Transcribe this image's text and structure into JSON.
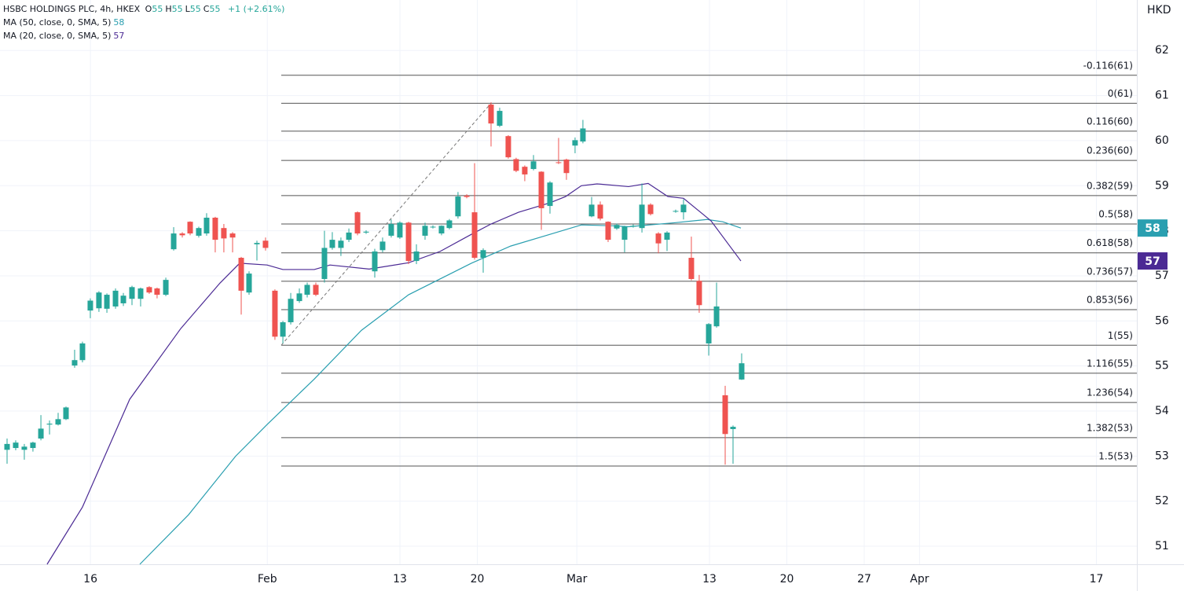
{
  "chart_data": {
    "type": "candlestick",
    "legend": {
      "symbol": "HSBC HOLDINGS PLC, 4h, HKEX",
      "fields": [
        {
          "key": "O",
          "value": "55"
        },
        {
          "key": "H",
          "value": "55"
        },
        {
          "key": "L",
          "value": "55"
        },
        {
          "key": "C",
          "value": "55"
        }
      ],
      "change": "+1 (+2.61%)"
    },
    "currency": "HKD",
    "up_color": "#26a69a",
    "down_color": "#ef5350",
    "grid": true,
    "xlim": [
      7.82,
      110.66
    ],
    "xticks": [
      {
        "value": 16,
        "label": "16"
      },
      {
        "value": 32,
        "label": "Feb"
      },
      {
        "value": 44,
        "label": "13"
      },
      {
        "value": 51,
        "label": "20"
      },
      {
        "value": 60,
        "label": "Mar"
      },
      {
        "value": 72,
        "label": "13"
      },
      {
        "value": 79,
        "label": "20"
      },
      {
        "value": 86,
        "label": "27"
      },
      {
        "value": 91,
        "label": "Apr"
      },
      {
        "value": 107,
        "label": "17"
      }
    ],
    "ylim": [
      50.6,
      63.12
    ],
    "yticks": [
      51,
      52,
      53,
      54,
      55,
      56,
      57,
      58,
      59,
      60,
      61,
      62
    ],
    "candles": {
      "x": [
        8.46,
        9.24,
        10.02,
        10.8,
        11.52,
        12.3,
        13.08,
        13.79,
        14.57,
        15.28,
        15.99,
        16.77,
        17.49,
        18.27,
        18.98,
        19.76,
        20.54,
        21.32,
        22.03,
        22.82,
        23.53,
        24.31,
        25.02,
        25.8,
        26.51,
        27.29,
        28.07,
        28.86,
        29.64,
        30.35,
        31.06,
        31.84,
        32.69,
        33.41,
        34.12,
        34.9,
        35.61,
        36.39,
        37.17,
        37.88,
        38.66,
        39.38,
        40.16,
        40.94,
        41.72,
        42.43,
        43.21,
        43.99,
        44.78,
        45.49,
        46.27,
        46.98,
        47.76,
        48.47,
        49.25,
        50.04,
        50.75,
        51.53,
        52.24,
        53.02,
        53.8,
        54.51,
        55.29,
        56.08,
        56.79,
        57.57,
        58.35,
        59.06,
        59.84,
        60.55,
        61.34,
        62.12,
        62.83,
        63.61,
        64.32,
        65.1,
        65.89,
        66.67,
        67.38,
        68.16,
        68.94,
        69.65,
        70.36,
        71.07,
        71.93,
        72.64,
        73.42,
        74.13,
        74.91
      ],
      "open": [
        53.14,
        53.18,
        53.14,
        53.18,
        53.39,
        53.7,
        53.7,
        53.82,
        55.01,
        55.13,
        56.23,
        56.28,
        56.27,
        56.32,
        56.39,
        56.49,
        56.49,
        56.75,
        56.72,
        56.58,
        57.59,
        57.94,
        58.2,
        57.89,
        57.94,
        58.29,
        58.06,
        57.94,
        57.4,
        56.63,
        57.7,
        57.78,
        56.67,
        55.65,
        55.97,
        56.44,
        56.58,
        56.8,
        56.93,
        57.62,
        57.62,
        57.8,
        58.41,
        57.96,
        57.1,
        57.57,
        57.89,
        57.85,
        58.18,
        57.33,
        57.89,
        58.08,
        57.94,
        58.06,
        58.32,
        58.78,
        58.41,
        57.4,
        60.8,
        60.33,
        60.1,
        59.59,
        59.42,
        59.37,
        59.31,
        58.55,
        59.52,
        59.58,
        59.89,
        59.98,
        58.32,
        58.58,
        58.2,
        58.05,
        57.8,
        58.1,
        58.06,
        58.58,
        57.94,
        57.8,
        58.43,
        58.41,
        57.4,
        56.89,
        55.5,
        55.88,
        54.35,
        53.6,
        54.7
      ],
      "high": [
        53.39,
        53.35,
        53.27,
        53.32,
        53.91,
        53.79,
        53.96,
        54.1,
        55.36,
        55.54,
        56.5,
        56.66,
        56.61,
        56.72,
        56.62,
        56.78,
        56.74,
        56.77,
        56.74,
        56.96,
        58.08,
        57.97,
        58.21,
        58.09,
        58.39,
        58.31,
        58.15,
        57.97,
        57.42,
        57.1,
        57.78,
        57.85,
        56.7,
        56.0,
        56.62,
        56.72,
        56.85,
        56.85,
        58.0,
        57.97,
        57.85,
        58.05,
        58.43,
        58.01,
        57.6,
        57.85,
        58.25,
        58.21,
        58.2,
        57.7,
        58.18,
        58.12,
        58.12,
        58.26,
        58.86,
        58.81,
        59.5,
        57.61,
        60.85,
        60.73,
        60.12,
        59.62,
        59.45,
        59.68,
        59.32,
        59.1,
        60.06,
        59.6,
        60.07,
        60.46,
        58.75,
        58.65,
        58.21,
        58.16,
        58.11,
        58.14,
        59.05,
        58.61,
        57.97,
        57.99,
        58.47,
        58.7,
        57.87,
        57.02,
        55.95,
        56.85,
        54.56,
        53.68,
        55.28
      ],
      "low": [
        52.83,
        53.13,
        52.92,
        53.1,
        53.35,
        53.48,
        53.68,
        53.8,
        54.96,
        55.08,
        56.06,
        56.2,
        56.18,
        56.27,
        56.33,
        56.35,
        56.32,
        56.6,
        56.5,
        56.55,
        57.56,
        57.85,
        57.9,
        57.85,
        57.89,
        57.52,
        57.52,
        57.52,
        56.14,
        56.58,
        57.34,
        57.56,
        55.58,
        55.5,
        55.92,
        56.4,
        56.52,
        56.55,
        56.85,
        57.58,
        57.44,
        57.75,
        57.9,
        57.93,
        56.96,
        57.52,
        57.85,
        57.82,
        57.26,
        57.26,
        57.8,
        58.05,
        57.9,
        58.03,
        58.27,
        58.72,
        57.36,
        57.07,
        59.87,
        60.3,
        59.6,
        59.3,
        59.1,
        59.34,
        58.02,
        58.38,
        59.48,
        59.13,
        59.72,
        59.94,
        58.3,
        58.23,
        57.75,
        58.02,
        57.52,
        58.07,
        57.96,
        58.34,
        57.5,
        57.55,
        58.4,
        58.25,
        56.9,
        56.18,
        55.23,
        55.85,
        52.81,
        52.83,
        54.69
      ],
      "close": [
        53.27,
        53.3,
        53.21,
        53.3,
        53.61,
        53.72,
        53.82,
        54.08,
        55.13,
        55.5,
        56.45,
        56.63,
        56.58,
        56.67,
        56.56,
        56.75,
        56.72,
        56.63,
        56.58,
        56.91,
        57.94,
        57.9,
        57.94,
        58.06,
        58.29,
        57.8,
        57.83,
        57.85,
        56.67,
        57.05,
        57.73,
        57.62,
        55.65,
        55.97,
        56.49,
        56.61,
        56.8,
        56.58,
        57.62,
        57.8,
        57.78,
        57.96,
        57.94,
        57.98,
        57.54,
        57.76,
        58.15,
        58.18,
        57.33,
        57.54,
        58.11,
        58.09,
        58.11,
        58.23,
        58.76,
        58.75,
        57.4,
        57.57,
        60.38,
        60.66,
        59.63,
        59.33,
        59.25,
        59.54,
        58.5,
        59.07,
        59.51,
        59.28,
        60.01,
        60.27,
        58.58,
        58.27,
        57.8,
        58.13,
        58.09,
        58.11,
        58.58,
        58.37,
        57.72,
        57.96,
        58.44,
        58.58,
        56.93,
        56.35,
        55.93,
        56.32,
        53.49,
        53.65,
        55.06
      ]
    },
    "series": [
      {
        "name": "MA (50, close, 0, SMA, 5)",
        "color": "#2a9fb0",
        "badge": "58",
        "x": [
          20.47,
          24.88,
          29.14,
          31.98,
          36.25,
          40.51,
          44.78,
          50.46,
          54.01,
          57.57,
          60.41,
          63.26,
          64.68,
          68.94,
          71.78,
          73.2,
          74.84
        ],
        "values": [
          50.6,
          51.7,
          53.0,
          53.7,
          54.71,
          55.79,
          56.58,
          57.28,
          57.66,
          57.92,
          58.13,
          58.11,
          58.09,
          58.18,
          58.25,
          58.2,
          58.06
        ]
      },
      {
        "name": "MA (20, close, 0, SMA, 5)",
        "color": "#4b2a94",
        "badge": "57",
        "x": [
          12.08,
          15.28,
          19.55,
          24.17,
          27.72,
          29.5,
          31.98,
          33.41,
          36.25,
          37.67,
          41.22,
          44.78,
          47.62,
          50.46,
          52.24,
          54.73,
          57.57,
          58.99,
          60.41,
          61.83,
          64.68,
          66.45,
          68.23,
          69.65,
          72.14,
          74.84
        ],
        "values": [
          50.6,
          51.87,
          54.26,
          55.83,
          56.84,
          57.28,
          57.24,
          57.14,
          57.14,
          57.24,
          57.15,
          57.29,
          57.54,
          57.92,
          58.15,
          58.41,
          58.62,
          58.76,
          59.0,
          59.04,
          58.98,
          59.05,
          58.76,
          58.72,
          58.22,
          57.33
        ]
      }
    ],
    "fib": {
      "x": [
        33.26,
        52.24
      ],
      "levels": [
        {
          "value": 61.45,
          "label": "-0.116(61)"
        },
        {
          "value": 60.83,
          "label": "0(61)"
        },
        {
          "value": 60.21,
          "label": "0.116(60)"
        },
        {
          "value": 59.56,
          "label": "0.236(60)"
        },
        {
          "value": 58.78,
          "label": "0.382(59)"
        },
        {
          "value": 58.15,
          "label": "0.5(58)"
        },
        {
          "value": 57.51,
          "label": "0.618(58)"
        },
        {
          "value": 56.88,
          "label": "0.736(57)"
        },
        {
          "value": 56.25,
          "label": "0.853(56)"
        },
        {
          "value": 55.46,
          "label": "1(55)"
        },
        {
          "value": 54.84,
          "label": "1.116(55)"
        },
        {
          "value": 54.19,
          "label": "1.236(54)"
        },
        {
          "value": 53.41,
          "label": "1.382(53)"
        },
        {
          "value": 52.78,
          "label": "1.5(53)"
        }
      ]
    }
  }
}
